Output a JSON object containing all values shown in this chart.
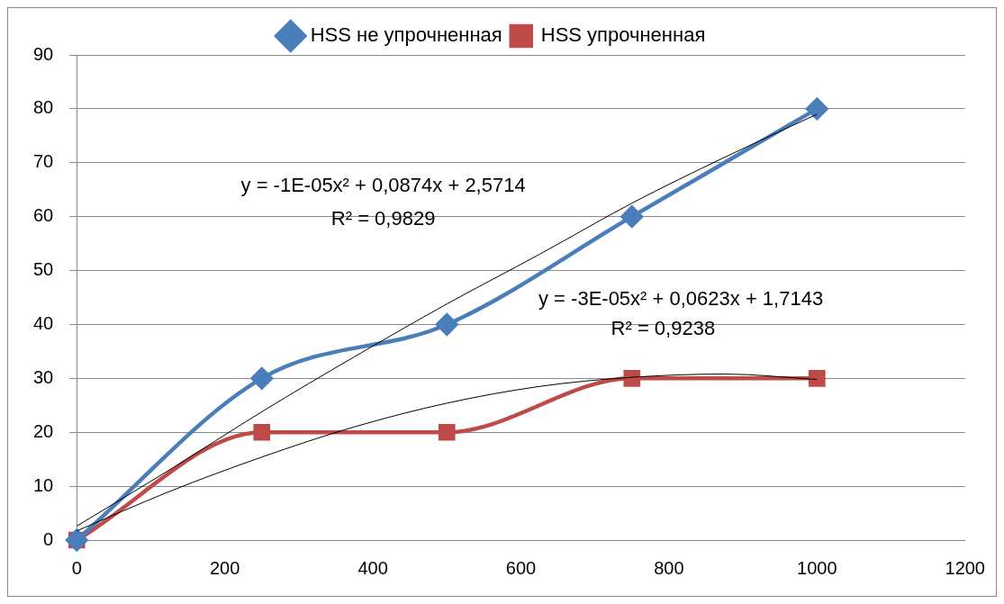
{
  "chart_data": {
    "type": "line",
    "x": [
      0,
      250,
      500,
      750,
      1000
    ],
    "xlim": [
      0,
      1200
    ],
    "xticks": [
      0,
      200,
      400,
      600,
      800,
      1000,
      1200
    ],
    "ylim": [
      0,
      90
    ],
    "yticks": [
      0,
      10,
      20,
      30,
      40,
      50,
      60,
      70,
      80,
      90
    ],
    "grid": "y",
    "legend": "top",
    "series": [
      {
        "name": "HSS не упрочненная",
        "color": "#4a7ebb",
        "marker": "diamond",
        "values": [
          0,
          30,
          40,
          60,
          80
        ]
      },
      {
        "name": "HSS упрочненная",
        "color": "#be4b48",
        "marker": "square",
        "values": [
          0,
          20,
          20,
          30,
          30
        ]
      },
      {
        "type": "line",
        "color": "#000000",
        "marker": "none",
        "x": [
          0,
          125,
          250,
          375,
          500,
          625,
          750,
          875,
          1000
        ],
        "values": [
          2.6,
          13,
          23.8,
          34,
          43.8,
          53,
          62.5,
          71,
          79
        ]
      },
      {
        "type": "line",
        "color": "#000000",
        "marker": "none",
        "x": [
          0,
          125,
          250,
          375,
          500,
          625,
          750,
          875,
          1000
        ],
        "values": [
          1.7,
          9,
          15.4,
          21,
          25.4,
          28.5,
          30.2,
          30.8,
          29.8
        ]
      }
    ],
    "annotations": [
      "y = -1E-05x² + 0,0874x + 2,5714",
      "R² = 0,9829",
      "y = -3E-05x² + 0,0623x + 1,7143",
      "R² = 0,9238"
    ]
  }
}
